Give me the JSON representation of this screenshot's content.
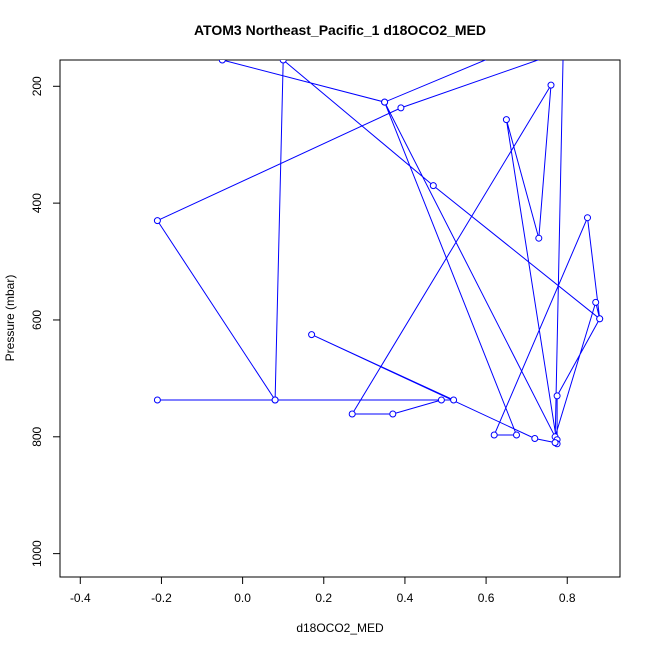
{
  "chart_data": {
    "type": "line",
    "title": "ATOM3 Northeast_Pacific_1 d18OCO2_MED",
    "xlabel": "d18OCO2_MED",
    "ylabel": "Pressure (mbar)",
    "xlim": [
      -0.45,
      0.93
    ],
    "ylim": [
      1040,
      155
    ],
    "y_reversed": true,
    "xticks": [
      -0.4,
      -0.2,
      0.0,
      0.2,
      0.4,
      0.6,
      0.8
    ],
    "xtick_labels": [
      "-0.4",
      "-0.2",
      "0.0",
      "0.2",
      "0.4",
      "0.6",
      "0.8"
    ],
    "yticks": [
      200,
      400,
      600,
      800,
      1000
    ],
    "ytick_labels": [
      "200",
      "400",
      "600",
      "800",
      "1000"
    ],
    "grid": false,
    "line_color": "#0000ff",
    "marker": "open-circle",
    "series": [
      {
        "x": [
          -0.05,
          0.35,
          0.77,
          0.87,
          0.88,
          0.775,
          0.775,
          0.775,
          0.65,
          0.73,
          0.76,
          0.27,
          0.37,
          0.49,
          0.08,
          -0.21,
          0.52,
          0.17,
          0.72,
          0.77,
          0.79,
          0.39,
          -0.21,
          0.08,
          0.1,
          0.47,
          0.88,
          0.85,
          0.62,
          0.675,
          0.35,
          0.65,
          0.77
        ],
        "y": [
          155,
          227,
          800,
          570,
          598,
          730,
          805,
          812,
          257,
          460,
          198,
          761,
          761,
          737,
          737,
          737,
          737,
          625,
          803,
          810,
          140,
          237,
          430,
          737,
          155,
          370,
          598,
          425,
          797,
          797,
          227,
          140,
          140
        ]
      }
    ]
  }
}
